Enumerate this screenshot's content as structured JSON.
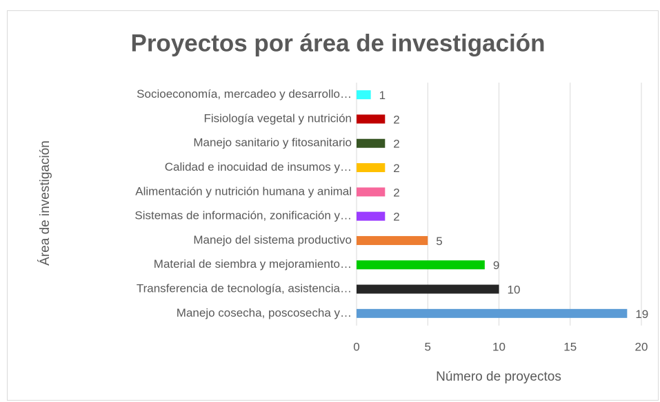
{
  "chart_data": {
    "type": "bar",
    "orientation": "horizontal",
    "title": "Proyectos por área de investigación",
    "x_label": "Número de proyectos",
    "y_label": "Área de investigación",
    "categories": [
      "Socioeconomía, mercadeo y desarrollo…",
      "Fisiología vegetal y nutrición",
      "Manejo sanitario y fitosanitario",
      "Calidad e inocuidad de insumos y…",
      "Alimentación y nutrición humana y animal",
      "Sistemas de información, zonificación y…",
      "Manejo del sistema productivo",
      "Material de siembra y mejoramiento…",
      "Transferencia de tecnología, asistencia…",
      "Manejo cosecha, poscosecha y…"
    ],
    "values": [
      1,
      2,
      2,
      2,
      2,
      2,
      5,
      9,
      10,
      19
    ],
    "colors": [
      "#33ffff",
      "#c00000",
      "#375623",
      "#ffc000",
      "#f7679b",
      "#9b3cff",
      "#ed7d31",
      "#00cc00",
      "#262626",
      "#5b9bd5"
    ],
    "xlim": [
      0,
      20
    ],
    "xticks": [
      0,
      5,
      10,
      15,
      20
    ],
    "grid": true
  }
}
